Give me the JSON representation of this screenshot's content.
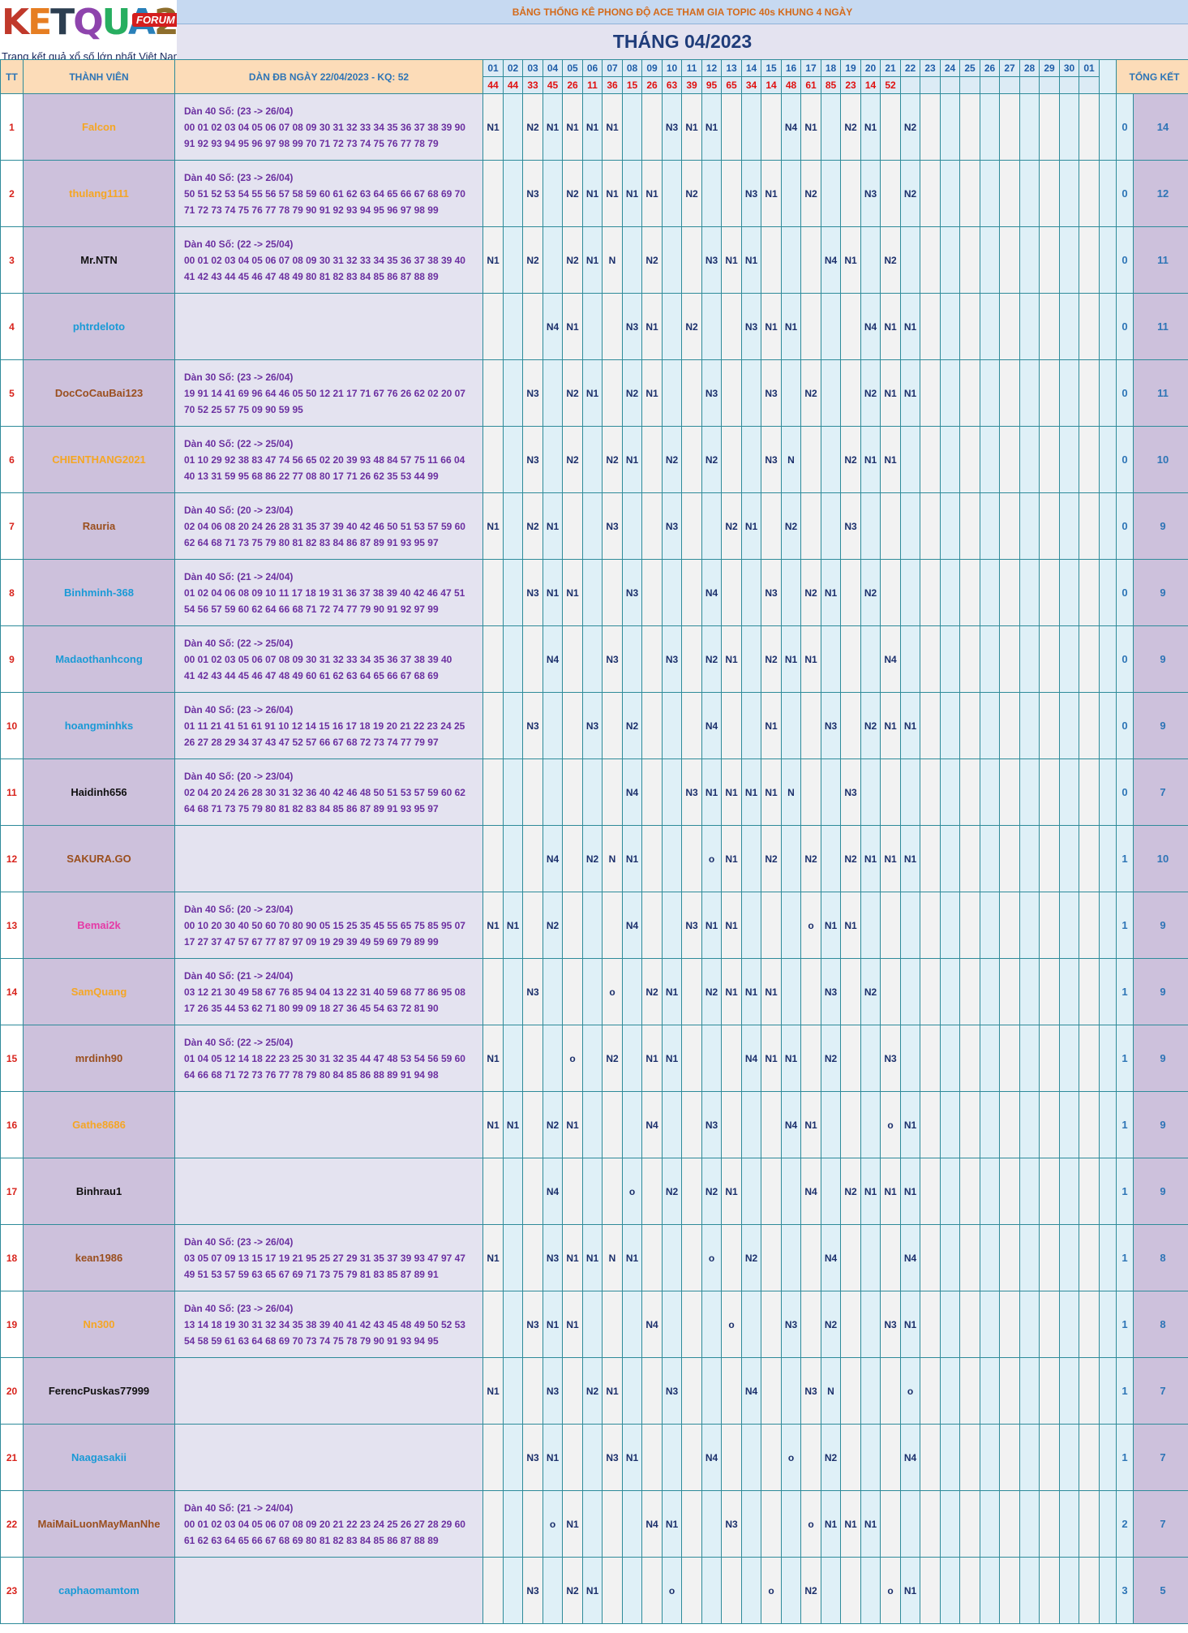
{
  "logo": {
    "brand": [
      "K",
      "E",
      "T",
      "Q",
      "U",
      "A",
      "2"
    ],
    "forum": "FORUM",
    "tagline": "Trang kết quả xổ số lớn nhất Việt Nam"
  },
  "header": {
    "title": "BẢNG THỐNG KÊ PHONG ĐỘ ACE THAM GIA TOPIC 40s KHUNG 4 NGÀY",
    "month": "THÁNG 04/2023"
  },
  "columns": {
    "tt": "TT",
    "member": "THÀNH VIÊN",
    "dan": "DÀN ĐB NGÀY 22/04/2023 - KQ: 52",
    "total": "TỔNG KẾT"
  },
  "days": [
    "01",
    "02",
    "03",
    "04",
    "05",
    "06",
    "07",
    "08",
    "09",
    "10",
    "11",
    "12",
    "13",
    "14",
    "15",
    "16",
    "17",
    "18",
    "19",
    "20",
    "21",
    "22",
    "23",
    "24",
    "25",
    "26",
    "27",
    "28",
    "29",
    "30",
    "01"
  ],
  "results": [
    "44",
    "44",
    "33",
    "45",
    "26",
    "11",
    "36",
    "15",
    "26",
    "63",
    "39",
    "95",
    "65",
    "34",
    "14",
    "48",
    "61",
    "85",
    "23",
    "14",
    "52",
    "",
    "",
    "",
    "",
    "",
    "",
    "",
    "",
    "",
    ""
  ],
  "rows": [
    {
      "tt": "1",
      "name": "Falcon",
      "color": "orange",
      "dan": [
        "Dàn 40 Số: (23 -> 26/04)",
        "00 01 02 03 04 05 06 07 08 09 30 31 32 33 34 35 36 37 38 39 90",
        "91 92 93 94 95 96 97 98 99 70 71 72 73 74 75 76 77 78 79"
      ],
      "cells": [
        "N1",
        "",
        "N2",
        "N1",
        "N1",
        "N1",
        "N1",
        "",
        "",
        "N3",
        "N1",
        "N1",
        "",
        "",
        "",
        "N4",
        "N1",
        "",
        "N2",
        "N1",
        "",
        "N2",
        "",
        "",
        "",
        "",
        "",
        "",
        "",
        "",
        ""
      ],
      "zero": "0",
      "total": "14"
    },
    {
      "tt": "2",
      "name": "thulang1111",
      "color": "orange",
      "dan": [
        "Dàn 40 Số: (23 -> 26/04)",
        "50 51 52 53 54 55 56 57 58 59 60 61 62 63 64 65 66 67 68 69 70",
        "71 72 73 74 75 76 77 78 79 90 91 92 93 94 95 96 97 98 99"
      ],
      "cells": [
        "",
        "",
        "N3",
        "",
        "N2",
        "N1",
        "N1",
        "N1",
        "N1",
        "",
        "N2",
        "",
        "",
        "N3",
        "N1",
        "",
        "N2",
        "",
        "",
        "N3",
        "",
        "N2",
        "",
        "",
        "",
        "",
        "",
        "",
        "",
        "",
        ""
      ],
      "zero": "0",
      "total": "12"
    },
    {
      "tt": "3",
      "name": "Mr.NTN",
      "color": "black",
      "dan": [
        "Dàn 40 Số: (22 -> 25/04)",
        "00 01 02 03 04 05 06 07 08 09 30 31 32 33 34 35 36 37 38 39 40",
        "41 42 43 44 45 46 47 48 49 80 81 82 83 84 85 86 87 88 89"
      ],
      "cells": [
        "N1",
        "",
        "N2",
        "",
        "N2",
        "N1",
        "N",
        "",
        "N2",
        "",
        "",
        "N3",
        "N1",
        "N1",
        "",
        "",
        "",
        "N4",
        "N1",
        "",
        "N2",
        "",
        "",
        "",
        "",
        "",
        "",
        "",
        "",
        "",
        ""
      ],
      "zero": "0",
      "total": "11"
    },
    {
      "tt": "4",
      "name": "phtrdeloto",
      "color": "blue",
      "dan": [
        "",
        "",
        ""
      ],
      "cells": [
        "",
        "",
        "",
        "N4",
        "N1",
        "",
        "",
        "N3",
        "N1",
        "",
        "N2",
        "",
        "",
        "N3",
        "N1",
        "N1",
        "",
        "",
        "",
        "N4",
        "N1",
        "N1",
        "",
        "",
        "",
        "",
        "",
        "",
        "",
        "",
        ""
      ],
      "zero": "0",
      "total": "11"
    },
    {
      "tt": "5",
      "name": "DocCoCauBai123",
      "color": "brown",
      "dan": [
        "Dàn 30 Số: (23 -> 26/04)",
        "19 91 14 41 69 96 64 46 05 50 12 21 17 71 67 76 26 62 02 20 07",
        "70 52 25 57 75 09 90 59 95"
      ],
      "cells": [
        "",
        "",
        "N3",
        "",
        "N2",
        "N1",
        "",
        "N2",
        "N1",
        "",
        "",
        "N3",
        "",
        "",
        "N3",
        "",
        "N2",
        "",
        "",
        "N2",
        "N1",
        "N1",
        "",
        "",
        "",
        "",
        "",
        "",
        "",
        "",
        ""
      ],
      "zero": "0",
      "total": "11"
    },
    {
      "tt": "6",
      "name": "CHIENTHANG2021",
      "color": "orange",
      "dan": [
        "Dàn 40 Số: (22 -> 25/04)",
        "01 10 29 92 38 83 47 74 56 65 02 20 39 93 48 84 57 75 11 66 04",
        "40 13 31 59 95 68 86 22 77 08 80 17 71 26 62 35 53 44 99"
      ],
      "cells": [
        "",
        "",
        "N3",
        "",
        "N2",
        "",
        "N2",
        "N1",
        "",
        "N2",
        "",
        "N2",
        "",
        "",
        "N3",
        "N",
        "",
        "",
        "N2",
        "N1",
        "N1",
        "",
        "",
        "",
        "",
        "",
        "",
        "",
        "",
        "",
        ""
      ],
      "zero": "0",
      "total": "10"
    },
    {
      "tt": "7",
      "name": "Rauria",
      "color": "brown",
      "dan": [
        "Dàn 40 Số: (20 -> 23/04)",
        "02 04 06 08 20 24 26 28 31 35 37 39 40 42 46 50 51 53 57 59 60",
        "62 64 68 71 73 75 79 80 81 82 83 84 86 87 89 91 93 95 97"
      ],
      "cells": [
        "N1",
        "",
        "N2",
        "N1",
        "",
        "",
        "N3",
        "",
        "",
        "N3",
        "",
        "",
        "N2",
        "N1",
        "",
        "N2",
        "",
        "",
        "N3",
        "",
        "",
        "",
        "",
        "",
        "",
        "",
        "",
        "",
        "",
        "",
        ""
      ],
      "zero": "0",
      "total": "9"
    },
    {
      "tt": "8",
      "name": "Binhminh-368",
      "color": "blue",
      "dan": [
        "Dàn 40 Số: (21 -> 24/04)",
        "01 02 04 06 08 09 10 11 17 18 19 31 36 37 38 39 40 42 46 47 51",
        "54 56 57 59 60 62 64 66 68 71 72 74 77 79 90 91 92 97 99"
      ],
      "cells": [
        "",
        "",
        "N3",
        "N1",
        "N1",
        "",
        "",
        "N3",
        "",
        "",
        "",
        "N4",
        "",
        "",
        "N3",
        "",
        "N2",
        "N1",
        "",
        "N2",
        "",
        "",
        "",
        "",
        "",
        "",
        "",
        "",
        "",
        "",
        ""
      ],
      "zero": "0",
      "total": "9"
    },
    {
      "tt": "9",
      "name": "Madaothanhcong",
      "color": "blue",
      "dan": [
        "Dàn 40 Số: (22 -> 25/04)",
        "00 01 02 03 05 06 07 08 09 30 31 32 33 34 35 36 37 38 39 40",
        "41 42 43 44 45 46 47 48 49 60 61 62 63 64 65 66 67 68 69"
      ],
      "cells": [
        "",
        "",
        "",
        "N4",
        "",
        "",
        "N3",
        "",
        "",
        "N3",
        "",
        "N2",
        "N1",
        "",
        "N2",
        "N1",
        "N1",
        "",
        "",
        "",
        "N4",
        "",
        "",
        "",
        "",
        "",
        "",
        "",
        "",
        "",
        ""
      ],
      "zero": "0",
      "total": "9"
    },
    {
      "tt": "10",
      "name": "hoangminhks",
      "color": "blue",
      "dan": [
        "Dàn 40 Số: (23 -> 26/04)",
        "01 11 21 41 51 61 91 10 12 14 15 16 17 18 19 20 21 22 23 24 25",
        "26 27 28 29 34 37 43 47 52 57 66 67 68 72 73 74 77 79 97"
      ],
      "cells": [
        "",
        "",
        "N3",
        "",
        "",
        "N3",
        "",
        "N2",
        "",
        "",
        "",
        "N4",
        "",
        "",
        "N1",
        "",
        "",
        "N3",
        "",
        "N2",
        "N1",
        "N1",
        "",
        "",
        "",
        "",
        "",
        "",
        "",
        "",
        ""
      ],
      "zero": "0",
      "total": "9"
    },
    {
      "tt": "11",
      "name": "Haidinh656",
      "color": "black",
      "dan": [
        "Dàn 40 Số: (20 -> 23/04)",
        "02 04 20 24 26 28 30 31 32 36 40 42 46 48 50 51 53 57 59 60 62",
        "64 68 71 73 75 79 80 81 82 83 84 85 86 87 89 91 93 95 97"
      ],
      "cells": [
        "",
        "",
        "",
        "",
        "",
        "",
        "",
        "N4",
        "",
        "",
        "N3",
        "N1",
        "N1",
        "N1",
        "N1",
        "N",
        "",
        "",
        "N3",
        "",
        "",
        "",
        "",
        "",
        "",
        "",
        "",
        "",
        "",
        "",
        ""
      ],
      "zero": "0",
      "total": "7"
    },
    {
      "tt": "12",
      "name": "SAKURA.GO",
      "color": "brown",
      "dan": [
        "",
        "",
        ""
      ],
      "cells": [
        "",
        "",
        "",
        "N4",
        "",
        "N2",
        "N",
        "N1",
        "",
        "",
        "",
        "o",
        "N1",
        "",
        "N2",
        "",
        "N2",
        "",
        "N2",
        "N1",
        "N1",
        "N1",
        "",
        "",
        "",
        "",
        "",
        "",
        "",
        "",
        ""
      ],
      "zero": "1",
      "total": "10"
    },
    {
      "tt": "13",
      "name": "Bemai2k",
      "color": "pink",
      "dan": [
        "Dàn 40 Số: (20 -> 23/04)",
        "00 10 20 30 40 50 60 70 80 90 05 15 25 35 45 55 65 75 85 95 07",
        "17 27 37 47 57 67 77 87 97 09 19 29 39 49 59 69 79 89 99"
      ],
      "cells": [
        "N1",
        "N1",
        "",
        "N2",
        "",
        "",
        "",
        "N4",
        "",
        "",
        "N3",
        "N1",
        "N1",
        "",
        "",
        "",
        "o",
        "N1",
        "N1",
        "",
        "",
        "",
        "",
        "",
        "",
        "",
        "",
        "",
        "",
        "",
        ""
      ],
      "zero": "1",
      "total": "9"
    },
    {
      "tt": "14",
      "name": "SamQuang",
      "color": "orange",
      "dan": [
        "Dàn 40 Số: (21 -> 24/04)",
        "03 12 21 30 49 58 67 76 85 94 04 13 22 31 40 59 68 77 86 95 08",
        "17 26 35 44 53 62 71 80 99 09 18 27 36 45 54 63 72 81 90"
      ],
      "cells": [
        "",
        "",
        "N3",
        "",
        "",
        "",
        "o",
        "",
        "N2",
        "N1",
        "",
        "N2",
        "N1",
        "N1",
        "N1",
        "",
        "",
        "N3",
        "",
        "N2",
        "",
        "",
        "",
        "",
        "",
        "",
        "",
        "",
        "",
        "",
        ""
      ],
      "zero": "1",
      "total": "9"
    },
    {
      "tt": "15",
      "name": "mrdinh90",
      "color": "brown",
      "dan": [
        "Dàn 40 Số: (22 -> 25/04)",
        "01 04 05 12 14 18 22 23 25 30 31 32 35 44 47 48 53 54 56 59 60",
        "64 66 68 71 72 73 76 77 78 79 80 84 85 86 88 89 91 94 98"
      ],
      "cells": [
        "N1",
        "",
        "",
        "",
        "o",
        "",
        "N2",
        "",
        "N1",
        "N1",
        "",
        "",
        "",
        "N4",
        "N1",
        "N1",
        "",
        "N2",
        "",
        "",
        "N3",
        "",
        "",
        "",
        "",
        "",
        "",
        "",
        "",
        "",
        ""
      ],
      "zero": "1",
      "total": "9"
    },
    {
      "tt": "16",
      "name": "Gathe8686",
      "color": "orange",
      "dan": [
        "",
        "",
        ""
      ],
      "cells": [
        "N1",
        "N1",
        "",
        "N2",
        "N1",
        "",
        "",
        "",
        "N4",
        "",
        "",
        "N3",
        "",
        "",
        "",
        "N4",
        "N1",
        "",
        "",
        "",
        "o",
        "N1",
        "",
        "",
        "",
        "",
        "",
        "",
        "",
        "",
        ""
      ],
      "zero": "1",
      "total": "9"
    },
    {
      "tt": "17",
      "name": "Binhrau1",
      "color": "black",
      "dan": [
        "",
        "",
        ""
      ],
      "cells": [
        "",
        "",
        "",
        "N4",
        "",
        "",
        "",
        "o",
        "",
        "N2",
        "",
        "N2",
        "N1",
        "",
        "",
        "",
        "N4",
        "",
        "N2",
        "N1",
        "N1",
        "N1",
        "",
        "",
        "",
        "",
        "",
        "",
        "",
        "",
        ""
      ],
      "zero": "1",
      "total": "9"
    },
    {
      "tt": "18",
      "name": "kean1986",
      "color": "brown",
      "dan": [
        "Dàn 40 Số: (23 -> 26/04)",
        "03 05 07 09 13 15 17 19 21 95 25 27 29 31 35 37 39 93 47 97 47",
        "49 51 53 57 59 63 65 67 69 71 73 75 79 81 83 85 87 89 91"
      ],
      "cells": [
        "N1",
        "",
        "",
        "N3",
        "N1",
        "N1",
        "N",
        "N1",
        "",
        "",
        "",
        "o",
        "",
        "N2",
        "",
        "",
        "",
        "N4",
        "",
        "",
        "",
        "N4",
        "",
        "",
        "",
        "",
        "",
        "",
        "",
        "",
        ""
      ],
      "zero": "1",
      "total": "8"
    },
    {
      "tt": "19",
      "name": "Nn300",
      "color": "orange",
      "dan": [
        "Dàn 40 Số: (23 -> 26/04)",
        "13 14 18 19 30 31 32 34 35 38 39 40 41 42 43 45 48 49 50 52 53",
        "54 58 59 61 63 64 68 69 70 73 74 75 78 79 90 91 93 94 95"
      ],
      "cells": [
        "",
        "",
        "N3",
        "N1",
        "N1",
        "",
        "",
        "",
        "N4",
        "",
        "",
        "",
        "o",
        "",
        "",
        "N3",
        "",
        "N2",
        "",
        "",
        "N3",
        "N1",
        "",
        "",
        "",
        "",
        "",
        "",
        "",
        "",
        ""
      ],
      "zero": "1",
      "total": "8"
    },
    {
      "tt": "20",
      "name": "FerencPuskas77999",
      "color": "black",
      "dan": [
        "",
        "",
        ""
      ],
      "cells": [
        "N1",
        "",
        "",
        "N3",
        "",
        "N2",
        "N1",
        "",
        "",
        "N3",
        "",
        "",
        "",
        "N4",
        "",
        "",
        "N3",
        "N",
        "",
        "",
        "",
        "o",
        "",
        "",
        "",
        "",
        "",
        "",
        "",
        "",
        ""
      ],
      "zero": "1",
      "total": "7"
    },
    {
      "tt": "21",
      "name": "Naagasakii",
      "color": "blue",
      "dan": [
        "",
        "",
        ""
      ],
      "cells": [
        "",
        "",
        "N3",
        "N1",
        "",
        "",
        "N3",
        "N1",
        "",
        "",
        "",
        "N4",
        "",
        "",
        "",
        "o",
        "",
        "N2",
        "",
        "",
        "",
        "N4",
        "",
        "",
        "",
        "",
        "",
        "",
        "",
        "",
        ""
      ],
      "zero": "1",
      "total": "7"
    },
    {
      "tt": "22",
      "name": "MaiMaiLuonMayManNhe",
      "color": "brown",
      "dan": [
        "Dàn 40 Số: (21 -> 24/04)",
        "00 01 02 03 04 05 06 07 08 09 20 21 22 23 24 25 26 27 28 29 60",
        "61 62 63 64 65 66 67 68 69 80 81 82 83 84 85 86 87 88 89"
      ],
      "cells": [
        "",
        "",
        "",
        "o",
        "N1",
        "",
        "",
        "",
        "N4",
        "N1",
        "",
        "",
        "N3",
        "",
        "",
        "",
        "o",
        "N1",
        "N1",
        "N1",
        "",
        "",
        "",
        "",
        "",
        "",
        "",
        "",
        "",
        "",
        ""
      ],
      "zero": "2",
      "total": "7"
    },
    {
      "tt": "23",
      "name": "caphaomamtom",
      "color": "blue",
      "dan": [
        "",
        "",
        ""
      ],
      "cells": [
        "",
        "",
        "N3",
        "",
        "N2",
        "N1",
        "",
        "",
        "",
        "o",
        "",
        "",
        "",
        "",
        "o",
        "",
        "N2",
        "",
        "",
        "",
        "o",
        "N1",
        "",
        "",
        "",
        "",
        "",
        "",
        "",
        "",
        ""
      ],
      "zero": "3",
      "total": "5"
    }
  ]
}
